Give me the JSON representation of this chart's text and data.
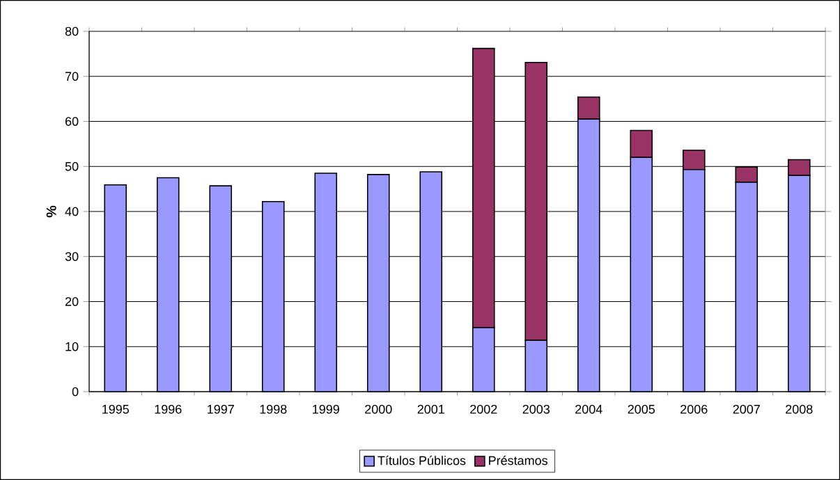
{
  "chart_data": {
    "type": "bar",
    "stacked": true,
    "ylabel": "%",
    "categories": [
      "1995",
      "1996",
      "1997",
      "1998",
      "1999",
      "2000",
      "2001",
      "2002",
      "2003",
      "2004",
      "2005",
      "2006",
      "2007",
      "2008"
    ],
    "series": [
      {
        "name": "Títulos Públicos",
        "color": "#9999ff",
        "values": [
          45.9,
          47.5,
          45.7,
          42.2,
          48.5,
          48.2,
          48.8,
          14.2,
          11.4,
          60.5,
          52.0,
          49.3,
          46.5,
          48.0
        ]
      },
      {
        "name": "Préstamos",
        "color": "#993366",
        "values": [
          null,
          null,
          null,
          null,
          null,
          null,
          null,
          62.0,
          61.7,
          4.9,
          6.0,
          4.3,
          3.4,
          3.5
        ]
      }
    ],
    "ylim": [
      0,
      80
    ],
    "yticks": [
      0,
      10,
      20,
      30,
      40,
      50,
      60,
      70,
      80
    ],
    "grid": "y",
    "legend": "bottom"
  }
}
